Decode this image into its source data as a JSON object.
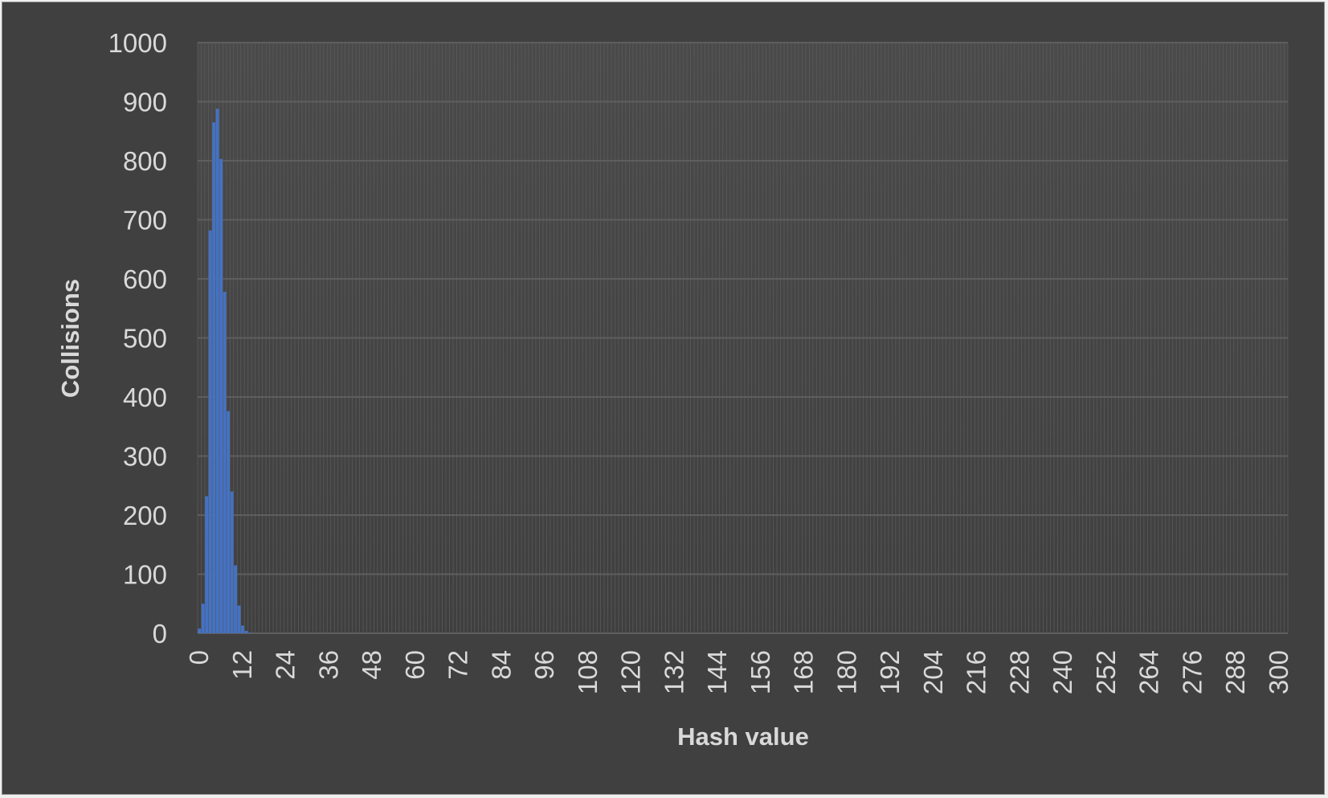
{
  "chart_data": {
    "type": "bar",
    "title": "",
    "xlabel": "Hash value",
    "ylabel": "Collisions",
    "ylim": [
      0,
      1000
    ],
    "y_ticks": [
      0,
      100,
      200,
      300,
      400,
      500,
      600,
      700,
      800,
      900,
      1000
    ],
    "x_range": [
      0,
      303
    ],
    "x_ticks": [
      0,
      12,
      24,
      36,
      48,
      60,
      72,
      84,
      96,
      108,
      120,
      132,
      144,
      156,
      168,
      180,
      192,
      204,
      216,
      228,
      240,
      252,
      264,
      276,
      288,
      300
    ],
    "x_tick_labels": [
      "0",
      "12",
      "24",
      "36",
      "48",
      "60",
      "72",
      "84",
      "96",
      "108",
      "120",
      "132",
      "144",
      "156",
      "168",
      "180",
      "192",
      "204",
      "216",
      "228",
      "240",
      "252",
      "264",
      "276",
      "288",
      "300"
    ],
    "grid": true,
    "legend": "none",
    "bar_color": "#4472c4",
    "x": [
      0,
      1,
      2,
      3,
      4,
      5,
      6,
      7,
      8,
      9,
      10,
      11,
      12,
      13,
      14,
      15
    ],
    "values": [
      8,
      50,
      232,
      682,
      865,
      888,
      803,
      578,
      376,
      240,
      115,
      47,
      13,
      4,
      1,
      0
    ]
  },
  "colors": {
    "background": "#404040",
    "plot_area": "#474747",
    "grid": "#5a5a5a",
    "text": "#d9d9d9"
  }
}
